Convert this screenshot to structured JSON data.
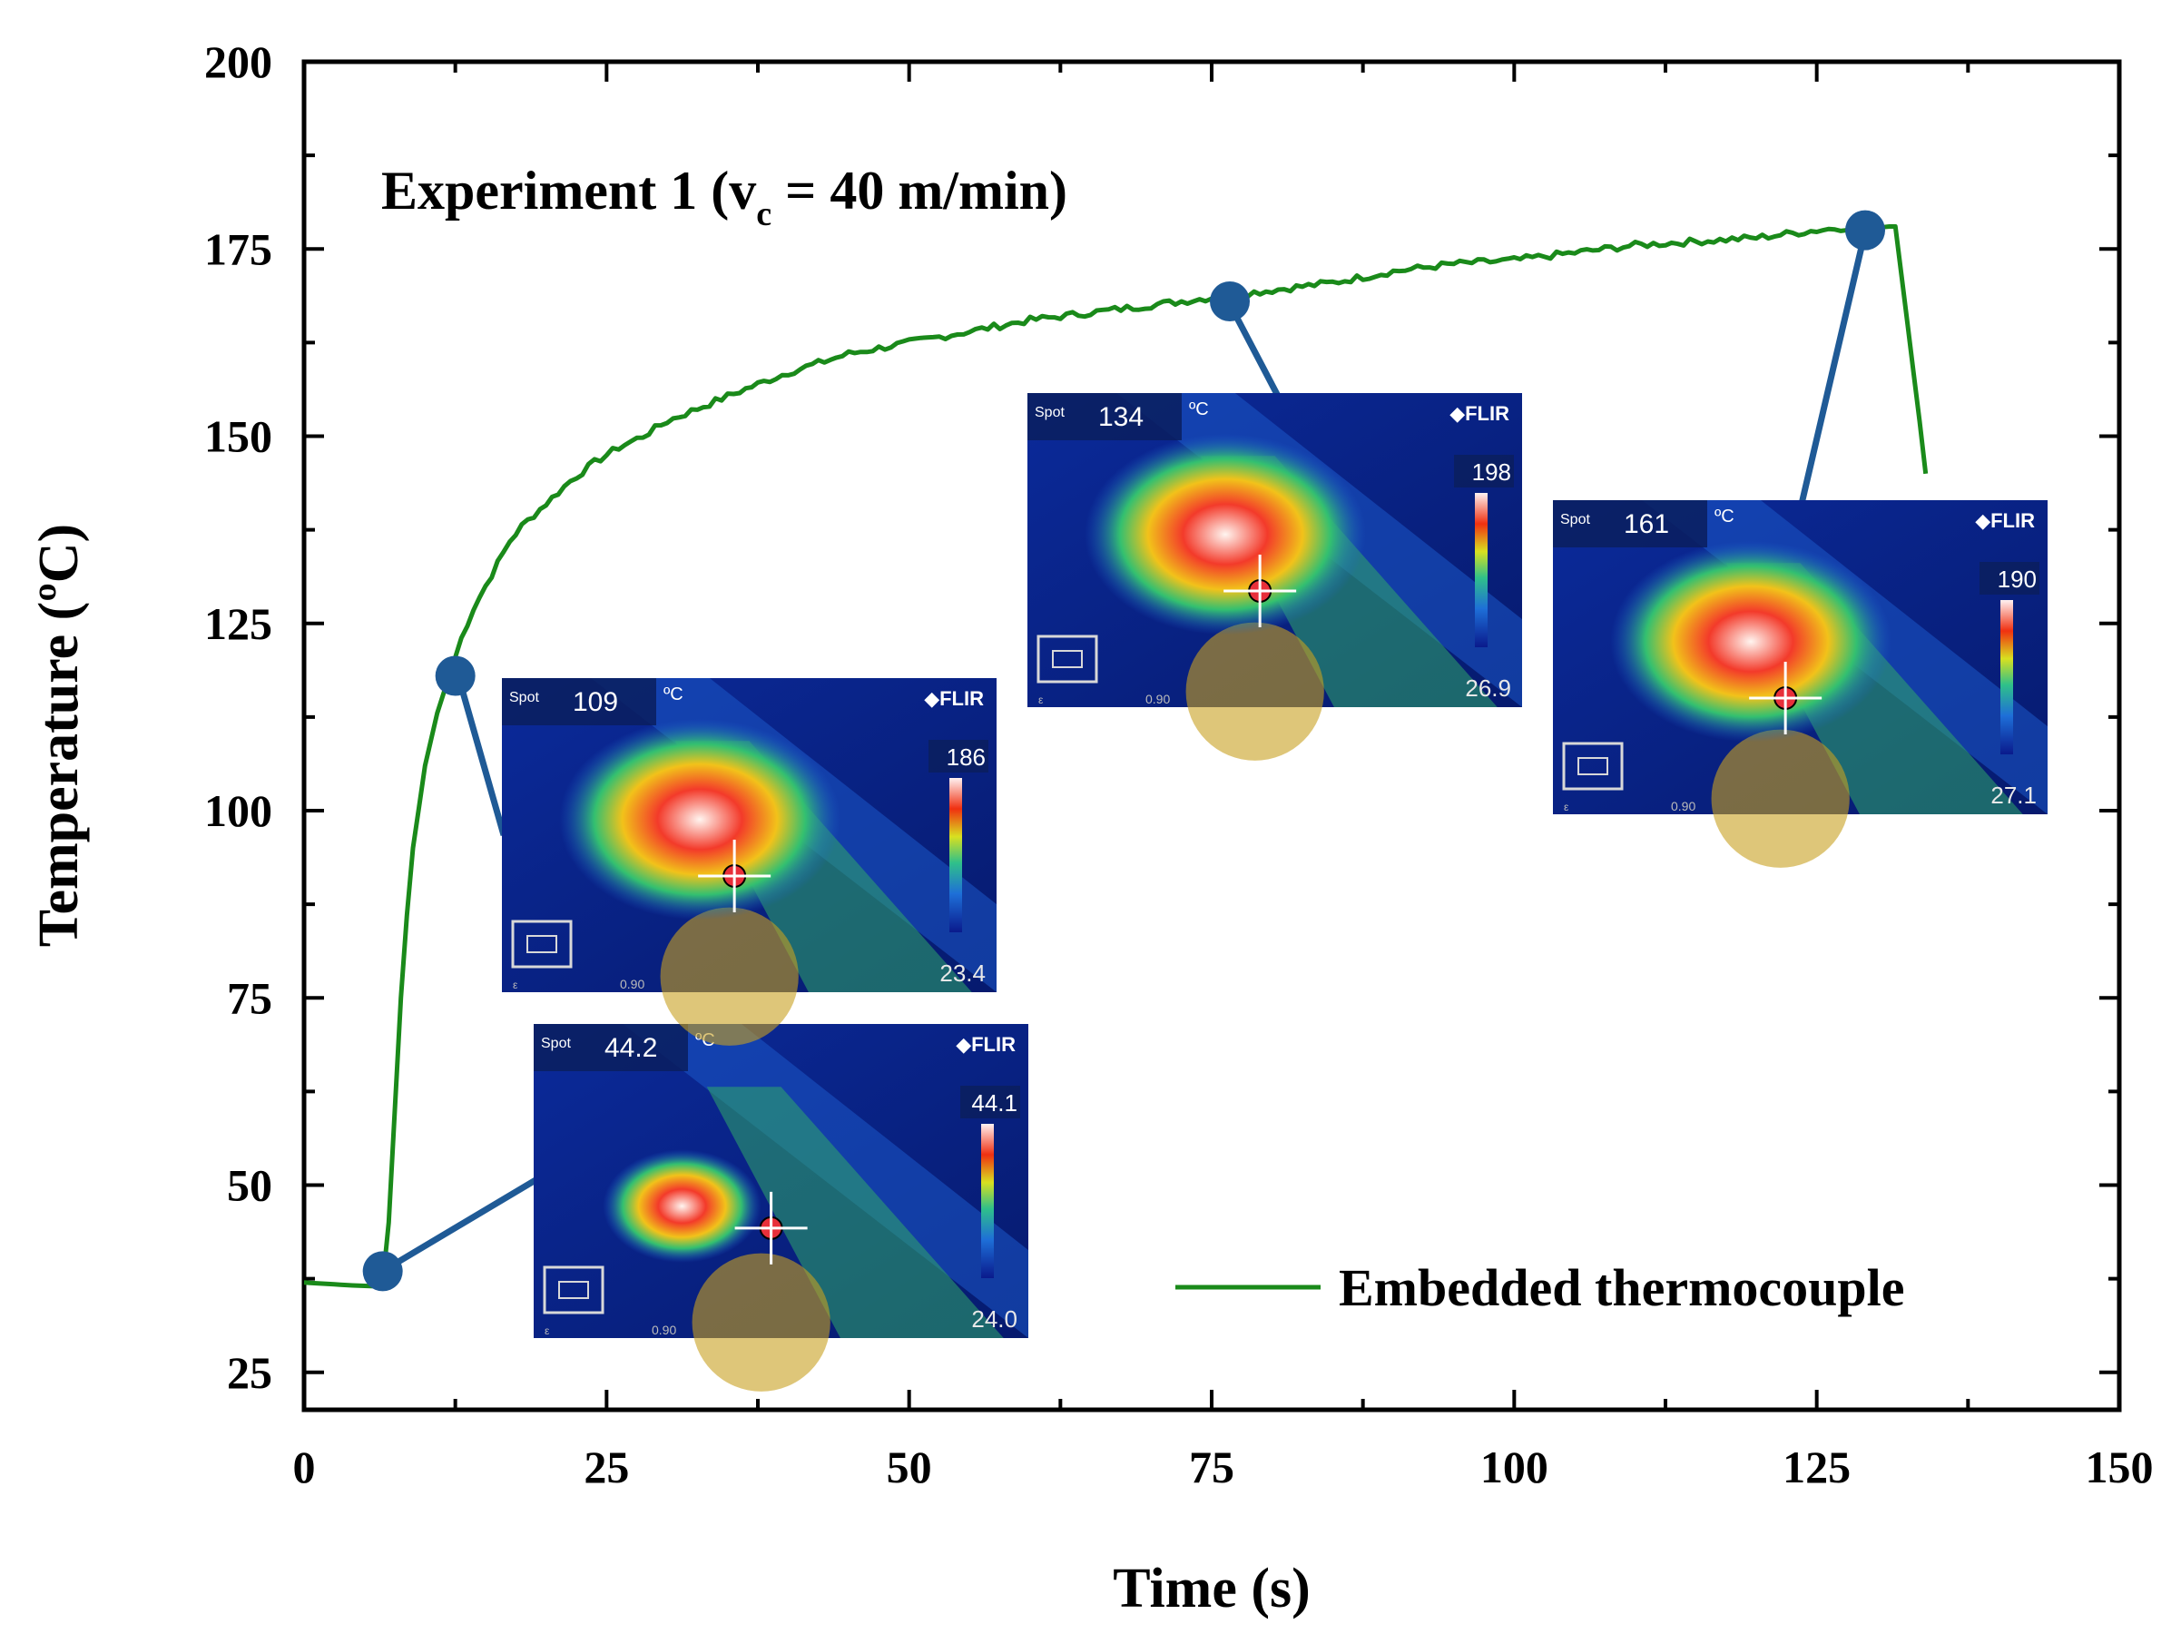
{
  "chart_data": {
    "type": "line",
    "title": "",
    "annotation": {
      "main": "Experiment 1 (v",
      "subscript": "c",
      "rest": " = 40 m/min)"
    },
    "xlabel": "Time (s)",
    "ylabel": "Temperature (ºC)",
    "xlim": [
      0,
      150
    ],
    "ylim": [
      20,
      200
    ],
    "xticks": [
      0,
      25,
      50,
      75,
      100,
      125,
      150
    ],
    "yticks": [
      25,
      50,
      75,
      100,
      125,
      150,
      175,
      200
    ],
    "xtick_labels": [
      "0",
      "25",
      "50",
      "75",
      "100",
      "125",
      "150"
    ],
    "ytick_labels": [
      "25",
      "50",
      "75",
      "100",
      "125",
      "150",
      "175",
      "200"
    ],
    "grid": false,
    "legend_position": "bottom-right",
    "colors": {
      "series": "#1a8a1a",
      "marker": "#1f5a96"
    },
    "series": [
      {
        "name": "Embedded thermocouple",
        "x": [
          0,
          2,
          4,
          6,
          6.5,
          7,
          7.5,
          8,
          8.5,
          9,
          10,
          11,
          12,
          13,
          14,
          15,
          16,
          17,
          18,
          20,
          22,
          24,
          26,
          28,
          30,
          33,
          36,
          40,
          45,
          50,
          55,
          60,
          65,
          70,
          75,
          80,
          85,
          90,
          95,
          100,
          105,
          110,
          115,
          120,
          125,
          128,
          130,
          131.5,
          132.5,
          133.5,
          134
        ],
        "y": [
          37,
          36.8,
          36.6,
          36.5,
          37,
          45,
          60,
          75,
          86,
          95,
          106,
          113,
          118,
          123,
          127,
          130,
          133,
          136,
          138,
          141,
          144,
          146.5,
          148.5,
          150,
          152,
          154,
          156,
          158.5,
          161,
          162.5,
          164,
          165.5,
          166.5,
          167.5,
          168.5,
          169.5,
          170.5,
          172,
          173,
          173.5,
          174.5,
          175.5,
          176,
          176.5,
          177.5,
          178,
          178,
          178,
          165,
          152,
          145
        ]
      }
    ],
    "markers": [
      {
        "x": 6.5,
        "y": 38.5
      },
      {
        "x": 12.5,
        "y": 118
      },
      {
        "x": 76.5,
        "y": 168
      },
      {
        "x": 129,
        "y": 177.5
      }
    ]
  },
  "insets": [
    {
      "spot_label": "Spot",
      "spot_value": "44.2",
      "unit": "ºC",
      "brand": "FLIR",
      "scale_max": "44.1",
      "scale_min": "24.0",
      "emissivity_label": "ε",
      "emissivity": "0.90"
    },
    {
      "spot_label": "Spot",
      "spot_value": "109",
      "unit": "ºC",
      "brand": "FLIR",
      "scale_max": "186",
      "scale_min": "23.4",
      "emissivity_label": "ε",
      "emissivity": "0.90"
    },
    {
      "spot_label": "Spot",
      "spot_value": "134",
      "unit": "ºC",
      "brand": "FLIR",
      "scale_max": "198",
      "scale_min": "26.9",
      "emissivity_label": "ε",
      "emissivity": "0.90"
    },
    {
      "spot_label": "Spot",
      "spot_value": "161",
      "unit": "ºC",
      "brand": "FLIR",
      "scale_max": "190",
      "scale_min": "27.1",
      "emissivity_label": "ε",
      "emissivity": "0.90"
    }
  ]
}
